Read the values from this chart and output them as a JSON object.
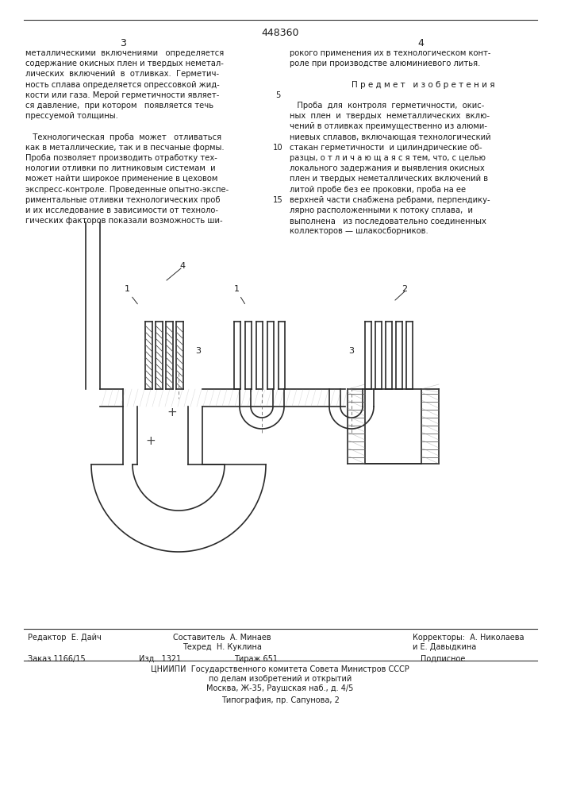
{
  "patent_number": "448360",
  "page_numbers": [
    "3",
    "4"
  ],
  "col1_text_lines": [
    "металлическими  включениями   определяется",
    "содержание окисных плен и твердых неметал-",
    "лических  включений  в  отливках.  Герметич-",
    "ность сплава определяется опрессовкой жид-",
    "кости или газа. Мерой герметичности являет-",
    "ся давление,  при котором   появляется течь",
    "прессуемой толщины.",
    "",
    "   Технологическая  проба  может   отливаться",
    "как в металлические, так и в песчаные формы.",
    "Проба позволяет производить отработку тех-",
    "нологии отливки по литниковым системам  и",
    "может найти широкое применение в цеховом",
    "экспресс-контроле. Проведенные опытно-экспе-",
    "риментальные отливки технологических проб",
    "и их исследование в зависимости от техноло-",
    "гических факторов показали возможность ши-"
  ],
  "col2_text_lines": [
    "рокого применения их в технологическом конт-",
    "роле при производстве алюминиевого литья.",
    "",
    "        П р е д м е т   и з о б р е т е н и я",
    "",
    "   Проба  для  контроля  герметичности,  окис-",
    "ных  плен  и  твердых  неметаллических  вклю-",
    "чений в отливках преимущественно из алюми-",
    "ниевых сплавов, включающая технологический",
    "стакан герметичности  и цилиндрические об-",
    "разцы, о т л и ч а ю щ а я с я тем, что, с целью",
    "локального задержания и выявления окисных",
    "плен и твердых неметаллических включений в",
    "литой пробе без ее проковки, проба на ее",
    "верхней части снабжена ребрами, перпендику-",
    "лярно расположенными к потоку сплава,  и",
    "выполнена   из последовательно соединенных",
    "коллекторов — шлакосборников."
  ],
  "line_num_5": "5",
  "line_num_10": "10",
  "line_num_15": "15",
  "footer_editor": "Редактор  Е. Дайч",
  "footer_composer": "Составитель  А. Минаев",
  "footer_correctors": "Корректоры:  А. Николаева",
  "footer_correctors2": "и Е. Давыдкина",
  "footer_tech": "Техред  Н. Куклина",
  "footer_order": "Заказ 1166/15",
  "footer_izd": "Изд.  1321",
  "footer_tirazh": "Тираж 651",
  "footer_podpisnoe": "Подписное",
  "footer_center1": "ЦНИИПИ  Государственного комитета Совета Министров СССР",
  "footer_center2": "по делам изобретений и открытий",
  "footer_center3": "Москва, Ж-35, Раушская наб., д. 4/5",
  "footer_tipografia": "Типография, пр. Сапунова, 2",
  "bg_color": "#ffffff",
  "text_color": "#1a1a1a"
}
